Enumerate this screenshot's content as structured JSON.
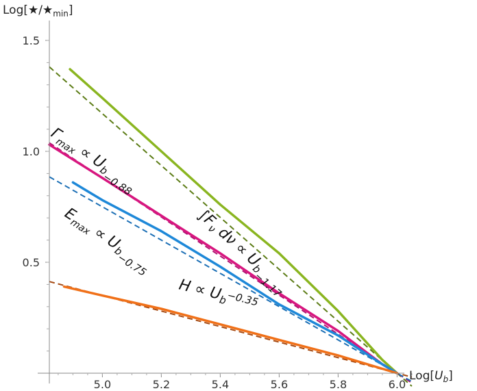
{
  "chart_data": {
    "type": "line",
    "xlabel": "Log[U_b]",
    "ylabel": "Log[★/★min]",
    "xlim": [
      4.82,
      6.08
    ],
    "ylim": [
      0.0,
      1.6
    ],
    "x_ticks": [
      "5.0",
      "5.2",
      "5.4",
      "5.6",
      "5.8",
      "6.0"
    ],
    "y_ticks": [
      "0.5",
      "1.0",
      "1.5"
    ],
    "grid": false,
    "legend": "none",
    "series": [
      {
        "name": "∫F_ν dν",
        "fit_label": "∫F_ν dν ∝ U_b^−1.17",
        "exponent": "-1.17",
        "color": "#8ab520",
        "fit_color": "#5c7c16",
        "x": [
          4.89,
          5.0,
          5.2,
          5.4,
          5.6,
          5.8,
          5.95,
          6.0
        ],
        "y": [
          1.37,
          1.24,
          1.0,
          0.76,
          0.54,
          0.28,
          0.06,
          0.0
        ]
      },
      {
        "name": "Γmax",
        "fit_label": "Γmax ∝ U_b^−0.88",
        "exponent": "-0.88",
        "color": "#d7167f",
        "fit_color": "#b01270",
        "x": [
          4.82,
          5.0,
          5.2,
          5.4,
          5.6,
          5.8,
          5.95,
          6.0
        ],
        "y": [
          1.03,
          0.88,
          0.71,
          0.54,
          0.36,
          0.19,
          0.04,
          0.0
        ]
      },
      {
        "name": "Emax",
        "fit_label": "Emax ∝ U_b^−0.75",
        "exponent": "-0.75",
        "color": "#1e88d8",
        "fit_color": "#1c6fb5",
        "x": [
          4.9,
          5.0,
          5.2,
          5.4,
          5.6,
          5.8,
          5.95,
          6.0
        ],
        "y": [
          0.86,
          0.78,
          0.64,
          0.48,
          0.31,
          0.17,
          0.04,
          0.0
        ]
      },
      {
        "name": "H",
        "fit_label": "H ∝ U_b^−0.35",
        "exponent": "-0.35",
        "color": "#f07018",
        "fit_color": "#a64a12",
        "x": [
          4.87,
          5.0,
          5.2,
          5.4,
          5.6,
          5.8,
          5.95,
          6.0
        ],
        "y": [
          0.39,
          0.35,
          0.29,
          0.22,
          0.15,
          0.08,
          0.02,
          0.0
        ]
      }
    ],
    "annotations": [
      {
        "id": "int",
        "base": "∫F",
        "sub1": "ν",
        "mid": " dν ∝ U",
        "sub2": "b",
        "sup": "−1.17"
      },
      {
        "id": "gamma",
        "base": "Γ",
        "sub1": "max",
        "mid": " ∝ U",
        "sub2": "b",
        "sup": "−0.88"
      },
      {
        "id": "emax",
        "base": "E",
        "sub1": "max",
        "mid": " ∝ U",
        "sub2": "b",
        "sup": "−0.75"
      },
      {
        "id": "h",
        "base": "H",
        "sub1": "",
        "mid": " ∝ U",
        "sub2": "b",
        "sup": "−0.35"
      }
    ]
  }
}
